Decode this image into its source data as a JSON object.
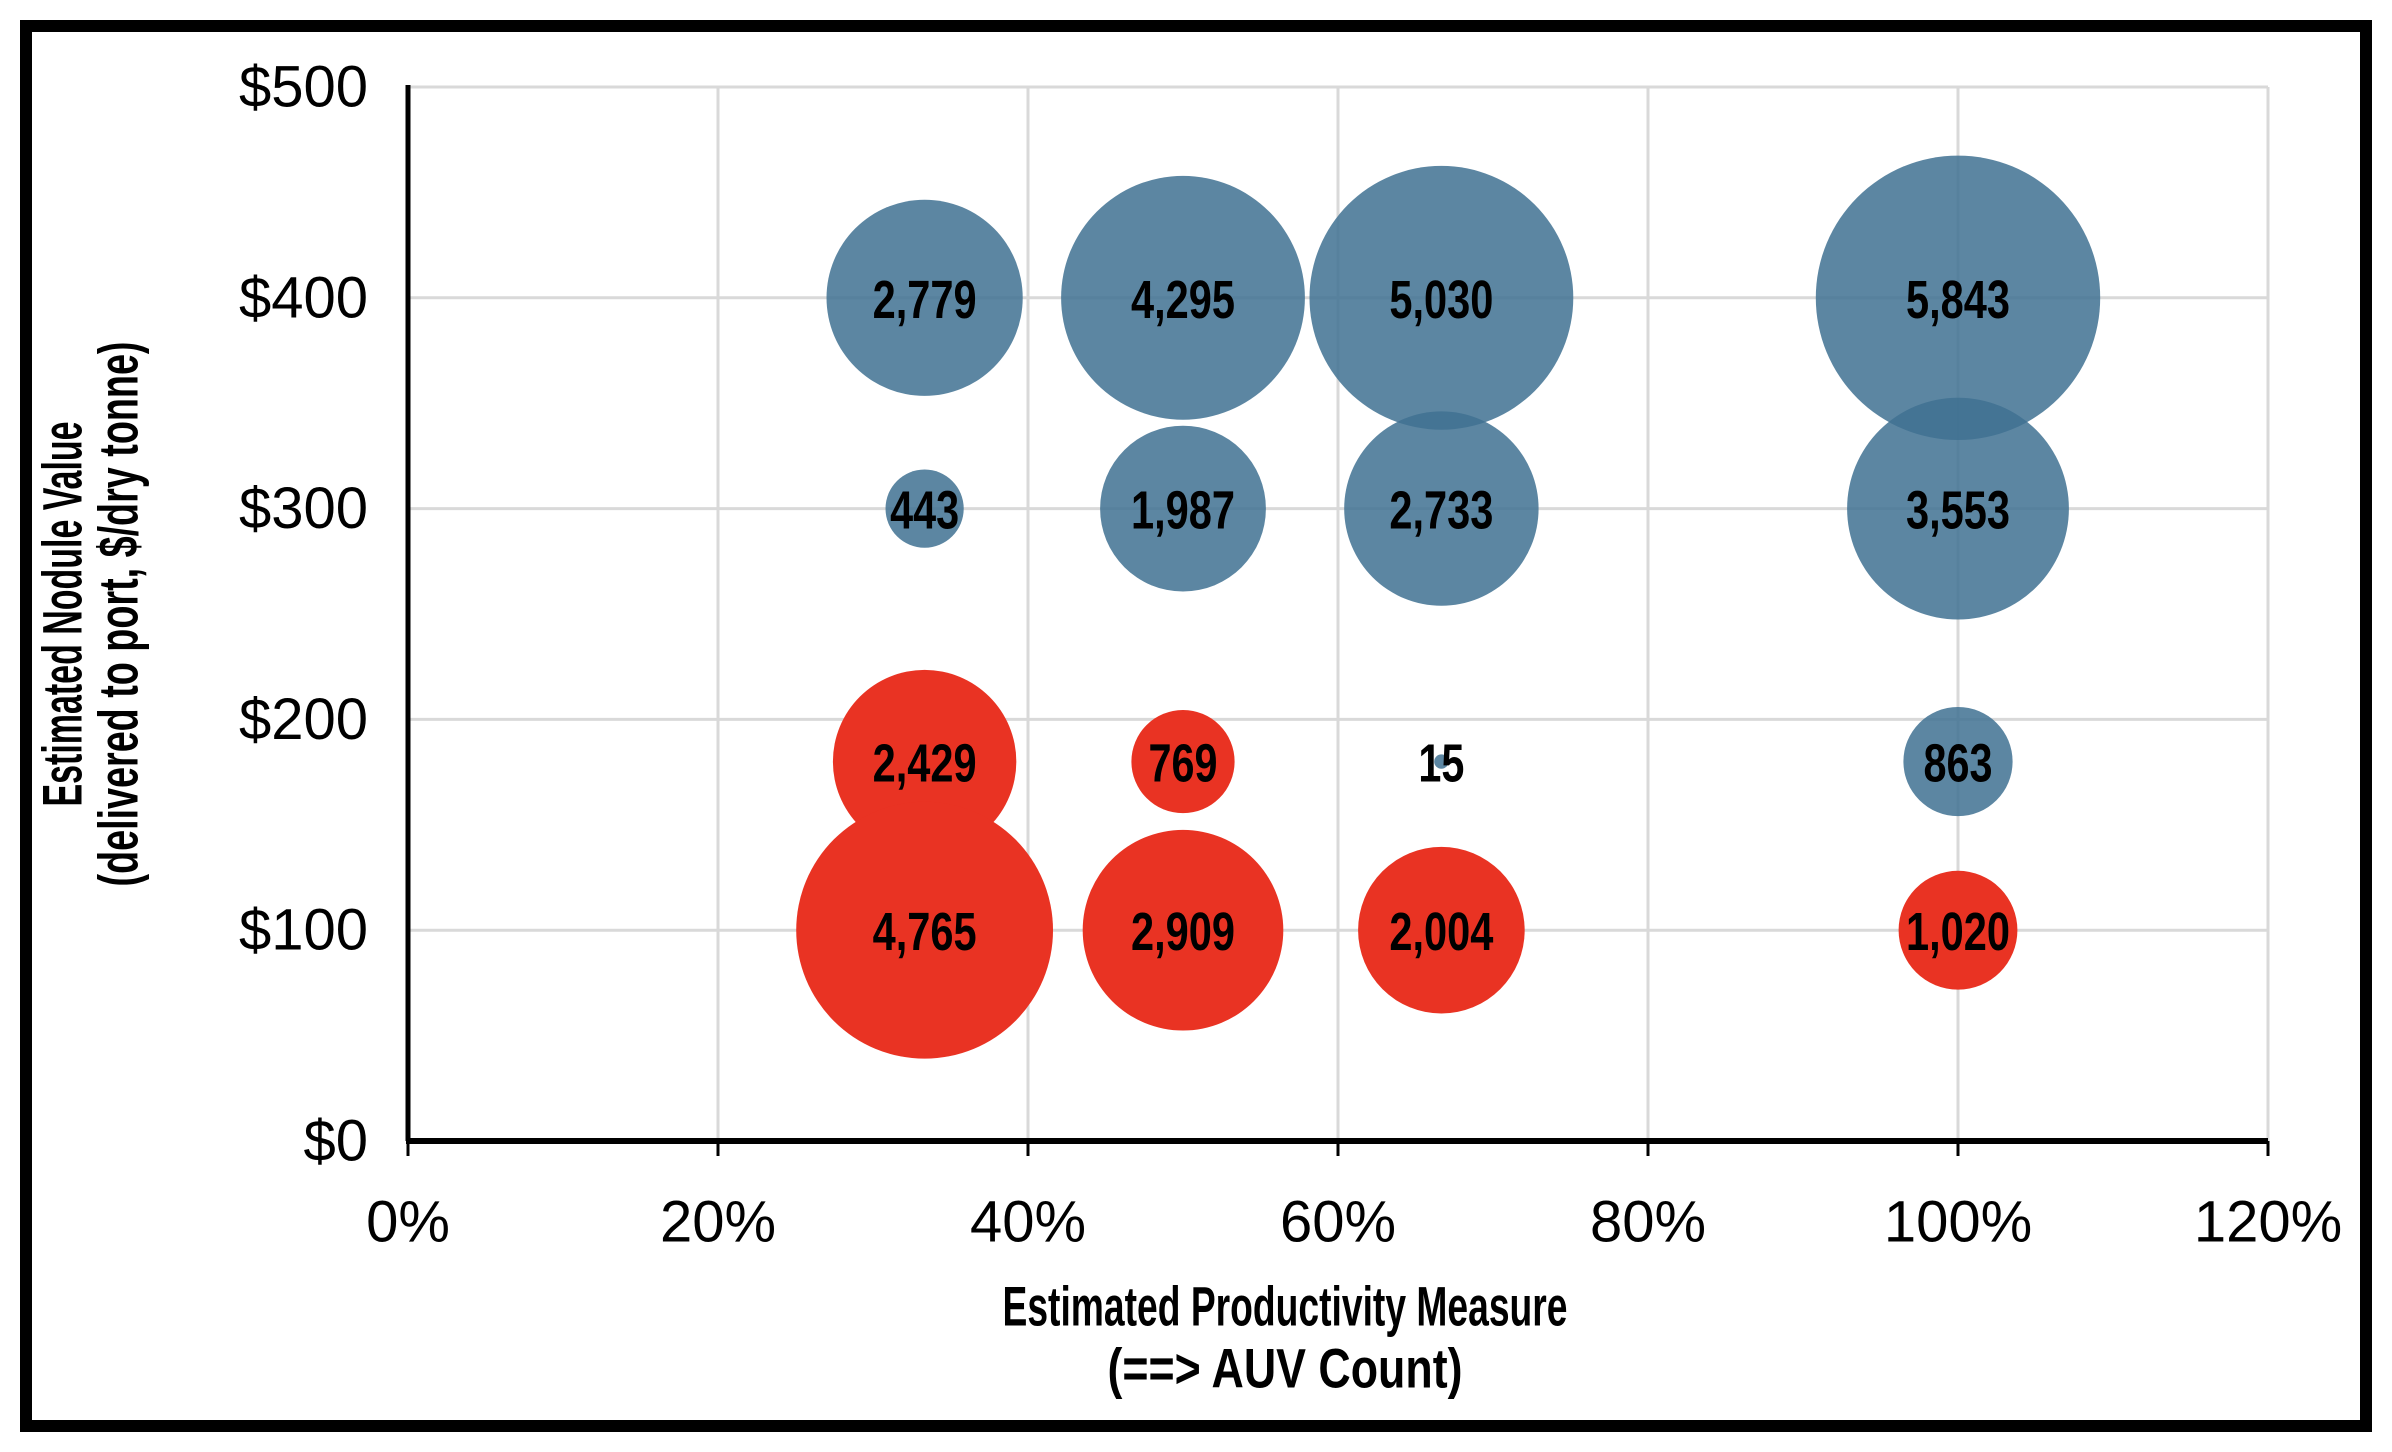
{
  "chart_data": {
    "type": "scatter",
    "subtype": "bubble",
    "title": "",
    "xlabel_lines": [
      "Estimated Productivity Measure",
      "(==> AUV Count)"
    ],
    "ylabel_lines": [
      "Estimated Nodule Value",
      "(delivered to port, $/dry tonne)"
    ],
    "x_tick_labels": [
      "0%",
      "20%",
      "40%",
      "60%",
      "80%",
      "100%",
      "120%"
    ],
    "y_tick_labels": [
      "$0",
      "$100",
      "$200",
      "$300",
      "$400",
      "$500"
    ],
    "xlim": [
      0,
      1.2
    ],
    "ylim": [
      0,
      500
    ],
    "x_tick_step": 0.2,
    "y_tick_step": 100,
    "grid": true,
    "gridline_color": "#D9D9D9",
    "axis_color": "#000000",
    "frame_color": "#000000",
    "background": "#FFFFFF",
    "data_label_color": "#000000",
    "series": [
      {
        "name": "blue",
        "color": "#5C86A2",
        "fill_opacity": 0.85,
        "points": [
          {
            "x": 0.3333,
            "y": 400,
            "size": 2779,
            "label": "2,779"
          },
          {
            "x": 0.5,
            "y": 400,
            "size": 4295,
            "label": "4,295"
          },
          {
            "x": 0.6667,
            "y": 400,
            "size": 5030,
            "label": "5,030"
          },
          {
            "x": 1.0,
            "y": 400,
            "size": 5843,
            "label": "5,843"
          },
          {
            "x": 0.3333,
            "y": 300,
            "size": 443,
            "label": "443"
          },
          {
            "x": 0.5,
            "y": 300,
            "size": 1987,
            "label": "1,987"
          },
          {
            "x": 0.6667,
            "y": 300,
            "size": 2733,
            "label": "2,733"
          },
          {
            "x": 1.0,
            "y": 300,
            "size": 3553,
            "label": "3,553"
          },
          {
            "x": 0.6667,
            "y": 180,
            "size": 15,
            "label": "15"
          },
          {
            "x": 1.0,
            "y": 180,
            "size": 863,
            "label": "863"
          }
        ]
      },
      {
        "name": "red",
        "color": "#E93323",
        "fill_opacity": 1,
        "points": [
          {
            "x": 0.3333,
            "y": 180,
            "size": 2429,
            "label": "2,429"
          },
          {
            "x": 0.5,
            "y": 180,
            "size": 769,
            "label": "769"
          },
          {
            "x": 0.3333,
            "y": 100,
            "size": 4765,
            "label": "4,765"
          },
          {
            "x": 0.5,
            "y": 100,
            "size": 2909,
            "label": "2,909"
          },
          {
            "x": 0.6667,
            "y": 100,
            "size": 2004,
            "label": "2,004"
          },
          {
            "x": 1.0,
            "y": 100,
            "size": 1020,
            "label": "1,020"
          }
        ]
      }
    ]
  }
}
